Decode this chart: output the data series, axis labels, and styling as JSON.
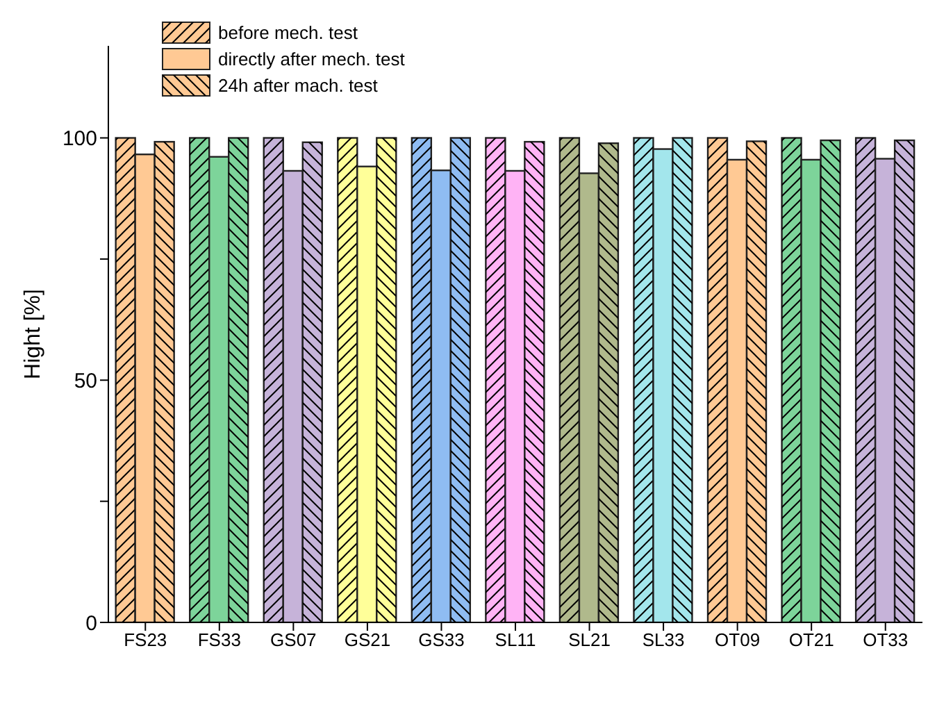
{
  "chart_data": {
    "type": "bar",
    "ylabel": "Hight [%]",
    "categories": [
      "FS23",
      "FS33",
      "GS07",
      "GS21",
      "GS33",
      "SL11",
      "SL21",
      "SL33",
      "OT09",
      "OT21",
      "OT33"
    ],
    "series": [
      {
        "name": "before mech. test",
        "color": "#ffc994",
        "colors": [
          "#ffc994",
          "#7dd49a",
          "#c6b3d9",
          "#ffff99",
          "#8fbcf2",
          "#ffb3f5",
          "#b0b98c",
          "#a3e6ec",
          "#ffc994",
          "#7dd49a",
          "#c6b3d9"
        ],
        "values": [
          100,
          100,
          100,
          100,
          100,
          100,
          100,
          100,
          100,
          100,
          100
        ]
      },
      {
        "name": "directly after mech. test",
        "color": "#ffc994",
        "colors": [
          "#ffc994",
          "#7dd49a",
          "#c6b3d9",
          "#ffff99",
          "#8fbcf2",
          "#ffb3f5",
          "#b0b98c",
          "#a3e6ec",
          "#ffc994",
          "#7dd49a",
          "#c6b3d9"
        ],
        "values": [
          96.6,
          96.1,
          93.2,
          94.1,
          93.3,
          93.2,
          92.7,
          97.7,
          95.5,
          95.5,
          95.7
        ]
      },
      {
        "name": "24h after mach. test",
        "color": "#ffc994",
        "colors": [
          "#ffc994",
          "#7dd49a",
          "#c6b3d9",
          "#ffff99",
          "#8fbcf2",
          "#ffb3f5",
          "#b0b98c",
          "#a3e6ec",
          "#ffc994",
          "#7dd49a",
          "#c6b3d9"
        ],
        "values": [
          99.2,
          100,
          99.1,
          100,
          100,
          99.2,
          98.9,
          100,
          99.3,
          99.5,
          99.5
        ]
      }
    ],
    "ylim": [
      0,
      119
    ],
    "yticks": [
      0,
      {
        "value": 25,
        "label": null
      },
      50,
      {
        "value": 75,
        "label": null
      },
      100
    ],
    "legend": "top left"
  }
}
